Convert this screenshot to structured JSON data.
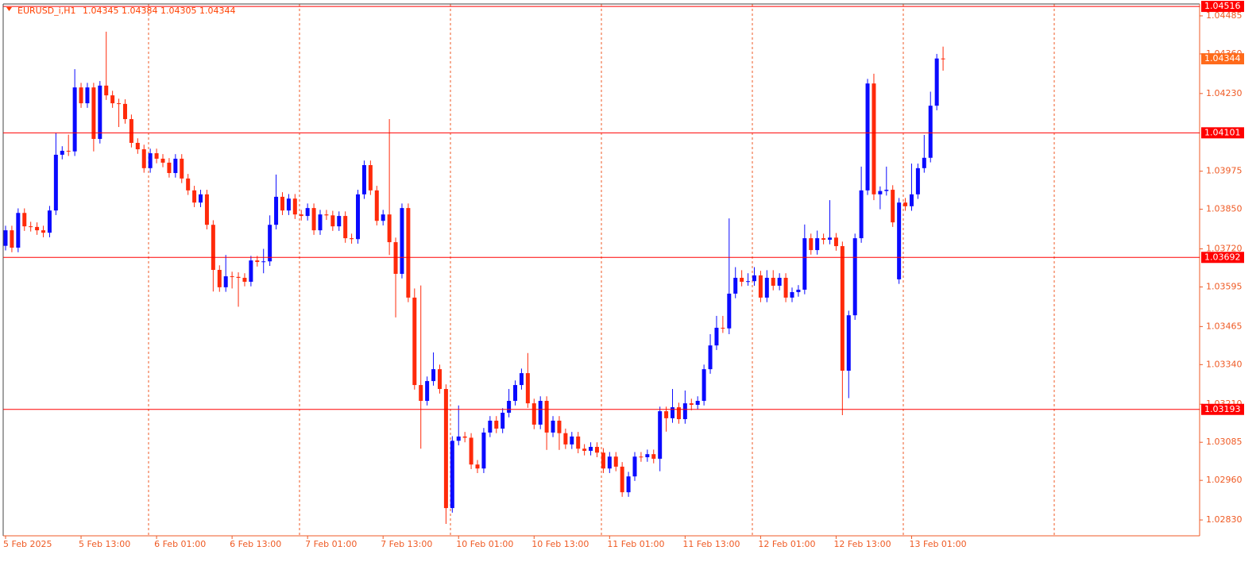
{
  "chart_data": {
    "type": "candlestick",
    "symbol": "EURUSD_i,H1",
    "categories": [
      "5 Feb 2025",
      null,
      null,
      null,
      null,
      null,
      null,
      null,
      null,
      null,
      null,
      null,
      "5 Feb 13:00",
      null,
      null,
      null,
      null,
      null,
      null,
      null,
      null,
      null,
      null,
      null,
      "6 Feb 01:00",
      null,
      null,
      null,
      null,
      null,
      null,
      null,
      null,
      null,
      null,
      null,
      "6 Feb 13:00",
      null,
      null,
      null,
      null,
      null,
      null,
      null,
      null,
      null,
      null,
      null,
      "7 Feb 01:00",
      null,
      null,
      null,
      null,
      null,
      null,
      null,
      null,
      null,
      null,
      null,
      "7 Feb 13:00",
      null,
      null,
      null,
      null,
      null,
      null,
      null,
      null,
      null,
      null,
      null,
      "10 Feb 01:00",
      null,
      null,
      null,
      null,
      null,
      null,
      null,
      null,
      null,
      null,
      null,
      "10 Feb 13:00",
      null,
      null,
      null,
      null,
      null,
      null,
      null,
      null,
      null,
      null,
      null,
      "11 Feb 01:00",
      null,
      null,
      null,
      null,
      null,
      null,
      null,
      null,
      null,
      null,
      null,
      "11 Feb 13:00",
      null,
      null,
      null,
      null,
      null,
      null,
      null,
      null,
      null,
      null,
      null,
      "12 Feb 01:00",
      null,
      null,
      null,
      null,
      null,
      null,
      null,
      null,
      null,
      null,
      null,
      "12 Feb 13:00",
      null,
      null,
      null,
      null,
      null,
      null,
      null,
      null,
      null,
      null,
      null,
      "13 Feb 01:00",
      null,
      null,
      null,
      null,
      null
    ],
    "open": [
      1.0373,
      1.03781,
      1.03724,
      1.03838,
      1.03794,
      1.03792,
      1.03781,
      1.03773,
      1.03846,
      1.04029,
      1.04042,
      1.0404,
      1.0425,
      1.04198,
      1.0425,
      1.04081,
      1.04256,
      1.04224,
      1.04198,
      1.04196,
      1.04146,
      1.04068,
      1.04047,
      1.03985,
      1.04034,
      1.04016,
      1.04003,
      1.03969,
      1.04016,
      1.03951,
      1.03912,
      1.03872,
      1.03899,
      1.03799,
      1.03651,
      1.03594,
      1.0363,
      1.03628,
      1.03625,
      1.03612,
      1.03682,
      1.03677,
      1.03679,
      1.03799,
      1.03891,
      1.03846,
      1.03885,
      1.03833,
      1.03828,
      1.03854,
      1.03781,
      1.03833,
      1.0383,
      1.03794,
      1.03828,
      1.03755,
      1.03752,
      1.03899,
      1.03995,
      1.03912,
      1.03812,
      1.03833,
      1.03742,
      1.03638,
      1.03854,
      1.0356,
      1.03273,
      1.03221,
      1.03286,
      1.03325,
      1.0326,
      1.02869,
      1.0309,
      1.03104,
      1.031,
      1.03012,
      1.02999,
      1.03117,
      1.03156,
      1.0313,
      1.03182,
      1.03221,
      1.03273,
      1.03312,
      1.03213,
      1.03143,
      1.03221,
      1.03117,
      1.03156,
      1.03115,
      1.03078,
      1.03104,
      1.03064,
      1.03057,
      1.0307,
      1.03051,
      1.02999,
      1.03038,
      1.03005,
      1.02921,
      1.02973,
      1.03038,
      1.03036,
      1.03046,
      1.03031,
      1.03187,
      1.03164,
      1.032,
      1.03161,
      1.03213,
      1.03208,
      1.03221,
      1.03325,
      1.03403,
      1.03461,
      1.03459,
      1.03573,
      1.03625,
      1.03612,
      1.03614,
      1.03633,
      1.0356,
      1.03625,
      1.03599,
      1.03625,
      1.0356,
      1.03578,
      1.03586,
      1.03755,
      1.03716,
      1.03755,
      1.0375,
      1.03757,
      1.03729,
      1.0332,
      1.03502,
      1.03755,
      1.03912,
      1.04263,
      1.03899,
      1.0391,
      1.03914,
      1.0362,
      1.03872,
      1.0386,
      1.03899,
      1.03985,
      1.04019,
      1.0419,
      1.04345
    ],
    "high": [
      1.03796,
      1.03796,
      1.03853,
      1.03853,
      1.03809,
      1.03807,
      1.03796,
      1.03861,
      1.041,
      1.04057,
      1.04095,
      1.0431,
      1.04265,
      1.04265,
      1.04265,
      1.04271,
      1.04433,
      1.04239,
      1.04213,
      1.04211,
      1.04161,
      1.04083,
      1.04062,
      1.04049,
      1.04049,
      1.04031,
      1.04018,
      1.04031,
      1.04031,
      1.03966,
      1.03927,
      1.03914,
      1.03914,
      1.03814,
      1.03666,
      1.037,
      1.03645,
      1.03643,
      1.0364,
      1.03697,
      1.03697,
      1.0372,
      1.0383,
      1.03964,
      1.03906,
      1.039,
      1.039,
      1.03848,
      1.03869,
      1.03869,
      1.03848,
      1.03848,
      1.03845,
      1.03843,
      1.03843,
      1.0377,
      1.03914,
      1.0401,
      1.0401,
      1.03927,
      1.03848,
      1.04146,
      1.03757,
      1.03869,
      1.03869,
      1.0359,
      1.036,
      1.03301,
      1.0338,
      1.0334,
      1.03275,
      1.03105,
      1.03206,
      1.03119,
      1.03115,
      1.03027,
      1.03132,
      1.03171,
      1.03171,
      1.03197,
      1.0326,
      1.03288,
      1.03327,
      1.03378,
      1.03228,
      1.03236,
      1.03236,
      1.03171,
      1.03171,
      1.0313,
      1.03119,
      1.03119,
      1.03079,
      1.03085,
      1.03085,
      1.03066,
      1.03053,
      1.03053,
      1.0302,
      1.02988,
      1.03053,
      1.03053,
      1.03061,
      1.03061,
      1.03202,
      1.03202,
      1.0326,
      1.03215,
      1.03255,
      1.03228,
      1.03236,
      1.0334,
      1.0344,
      1.035,
      1.035,
      1.0382,
      1.0366,
      1.0365,
      1.0364,
      1.0366,
      1.03648,
      1.0365,
      1.0365,
      1.0364,
      1.0364,
      1.03593,
      1.03601,
      1.038,
      1.0377,
      1.0378,
      1.0377,
      1.0388,
      1.03772,
      1.03744,
      1.03517,
      1.0377,
      1.0399,
      1.04278,
      1.04295,
      1.03925,
      1.0399,
      1.03929,
      1.03887,
      1.03887,
      1.04,
      1.04,
      1.04094,
      1.04236,
      1.0436,
      1.04384
    ],
    "low": [
      1.03715,
      1.03709,
      1.03709,
      1.03779,
      1.03777,
      1.03766,
      1.03758,
      1.03758,
      1.03831,
      1.04014,
      1.04025,
      1.04025,
      1.04183,
      1.04183,
      1.0404,
      1.04066,
      1.04209,
      1.04183,
      1.0412,
      1.04131,
      1.04053,
      1.04032,
      1.0397,
      1.0397,
      1.04001,
      1.03988,
      1.03954,
      1.03954,
      1.03936,
      1.03897,
      1.03857,
      1.03857,
      1.03784,
      1.0358,
      1.03579,
      1.03579,
      1.0359,
      1.0353,
      1.03597,
      1.03597,
      1.03662,
      1.0364,
      1.03664,
      1.03784,
      1.03831,
      1.03831,
      1.03818,
      1.03813,
      1.03813,
      1.03766,
      1.03766,
      1.03815,
      1.03779,
      1.03779,
      1.0374,
      1.03737,
      1.03737,
      1.03884,
      1.03897,
      1.03797,
      1.03797,
      1.037,
      1.03495,
      1.03623,
      1.03545,
      1.03258,
      1.03064,
      1.03206,
      1.03271,
      1.03245,
      1.02817,
      1.02854,
      1.03075,
      1.03085,
      1.02997,
      1.02984,
      1.02984,
      1.03102,
      1.03115,
      1.03115,
      1.03167,
      1.03206,
      1.03258,
      1.03198,
      1.03128,
      1.03128,
      1.0306,
      1.03102,
      1.0306,
      1.03063,
      1.03063,
      1.03049,
      1.03042,
      1.03042,
      1.03036,
      1.02984,
      1.02984,
      1.0299,
      1.02906,
      1.02906,
      1.02958,
      1.03021,
      1.03021,
      1.03016,
      1.0299,
      1.0312,
      1.03149,
      1.03146,
      1.03146,
      1.0319,
      1.03193,
      1.03206,
      1.0331,
      1.03388,
      1.03444,
      1.0344,
      1.03558,
      1.03597,
      1.03599,
      1.03599,
      1.03545,
      1.03545,
      1.03584,
      1.03584,
      1.03545,
      1.03545,
      1.03563,
      1.03571,
      1.03701,
      1.03701,
      1.03735,
      1.03735,
      1.03714,
      1.03174,
      1.0323,
      1.03487,
      1.0374,
      1.03897,
      1.0388,
      1.0385,
      1.03895,
      1.03792,
      1.03605,
      1.03845,
      1.03845,
      1.03884,
      1.0397,
      1.04004,
      1.04175,
      1.04305
    ],
    "close": [
      1.03781,
      1.03724,
      1.03838,
      1.03794,
      1.03792,
      1.03781,
      1.03773,
      1.03846,
      1.04029,
      1.04042,
      1.0404,
      1.0425,
      1.04198,
      1.0425,
      1.04081,
      1.04256,
      1.04224,
      1.04198,
      1.04196,
      1.04146,
      1.04068,
      1.04047,
      1.03985,
      1.04034,
      1.04016,
      1.04003,
      1.03969,
      1.04016,
      1.03951,
      1.03912,
      1.03872,
      1.03899,
      1.03799,
      1.03651,
      1.03594,
      1.0363,
      1.03628,
      1.03625,
      1.03612,
      1.03682,
      1.03677,
      1.03679,
      1.03799,
      1.03891,
      1.03846,
      1.03885,
      1.03833,
      1.03828,
      1.03854,
      1.03781,
      1.03833,
      1.0383,
      1.03794,
      1.03828,
      1.03755,
      1.03752,
      1.03899,
      1.03995,
      1.03912,
      1.03812,
      1.03833,
      1.03742,
      1.03638,
      1.03854,
      1.0356,
      1.03273,
      1.03221,
      1.03286,
      1.03325,
      1.0326,
      1.02869,
      1.0309,
      1.03104,
      1.031,
      1.03012,
      1.02999,
      1.03117,
      1.03156,
      1.0313,
      1.03182,
      1.03221,
      1.03273,
      1.03312,
      1.03213,
      1.03143,
      1.03221,
      1.03117,
      1.03156,
      1.03115,
      1.03078,
      1.03104,
      1.03064,
      1.03057,
      1.0307,
      1.03051,
      1.02999,
      1.03038,
      1.03005,
      1.02921,
      1.02973,
      1.03038,
      1.03036,
      1.03046,
      1.03031,
      1.03187,
      1.03164,
      1.032,
      1.03161,
      1.03213,
      1.03208,
      1.03221,
      1.03325,
      1.03403,
      1.03461,
      1.03459,
      1.03573,
      1.03625,
      1.03612,
      1.03614,
      1.03633,
      1.0356,
      1.03625,
      1.03599,
      1.03625,
      1.0356,
      1.03578,
      1.03586,
      1.03755,
      1.03716,
      1.03755,
      1.0375,
      1.03757,
      1.03729,
      1.0332,
      1.03502,
      1.03755,
      1.03912,
      1.04263,
      1.03899,
      1.0391,
      1.03914,
      1.03807,
      1.03872,
      1.0386,
      1.03899,
      1.03985,
      1.04019,
      1.0419,
      1.04345,
      1.04344
    ],
    "up_color": "#0a0aff",
    "down_color": "#ff2a0a",
    "ylim": [
      1.02778,
      1.04524
    ],
    "yticks": [
      1.04485,
      {
        "value": 1.0436,
        "label": "1.04360"
      },
      {
        "value": 1.0423,
        "label": "1.04230"
      },
      1.03975,
      {
        "value": 1.0385,
        "label": "1.03850"
      },
      {
        "value": 1.0372,
        "label": "1.03720"
      },
      1.03595,
      1.03465,
      {
        "value": 1.0334,
        "label": "1.03340"
      },
      {
        "value": 1.0321,
        "label": "1.03210"
      },
      1.03085,
      {
        "value": 1.0296,
        "label": "1.02960"
      },
      {
        "value": 1.0283,
        "label": "1.02830"
      }
    ],
    "hlines": [
      1.04516,
      1.04101,
      1.03692,
      1.03193
    ],
    "hline_color": "#ff0000",
    "price_color": "#ff6a1a",
    "axis_color": "#ef5a24"
  }
}
